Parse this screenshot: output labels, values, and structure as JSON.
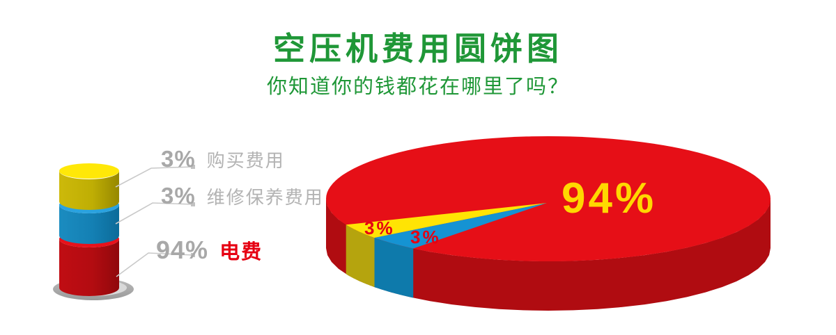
{
  "header": {
    "title": "空压机费用圆饼图",
    "subtitle": "你知道你的钱都花在哪里了吗？",
    "title_color": "#1f9737"
  },
  "legend": {
    "items": [
      {
        "pct": "3%",
        "label": "购买费用",
        "swatch_top": "#ffe808",
        "swatch_body": "#c6b400",
        "text_color": "#b3b3b3"
      },
      {
        "pct": "3%",
        "label": "维修保养费用",
        "swatch_top": "#2aa2df",
        "swatch_body": "#1583b8",
        "text_color": "#b3b3b3"
      },
      {
        "pct": "94%",
        "label": "电费",
        "swatch_top": "#e8111b",
        "swatch_body": "#b50d12",
        "text_color": "#e60012"
      }
    ]
  },
  "chart_data": {
    "type": "pie",
    "style": "3d",
    "title": "空压机费用圆饼图",
    "subtitle": "你知道你的钱都花在哪里了吗？",
    "legend_position": "left",
    "slices": [
      {
        "label": "电费",
        "value": 94,
        "display": "94%",
        "top_color": "#e60f17",
        "side_color": "#b00c11",
        "label_color": "#ffd800"
      },
      {
        "label": "购买费用",
        "value": 3,
        "display": "3%",
        "top_color": "#ffe404",
        "side_color": "#b5a40e",
        "label_color": "#e60012"
      },
      {
        "label": "维修保养费用",
        "value": 3,
        "display": "3%",
        "top_color": "#1593d3",
        "side_color": "#0e7aab",
        "label_color": "#e60012"
      }
    ]
  },
  "colors": {
    "accent_green": "#1f9737",
    "gray_text": "#b3b3b3",
    "leader_line": "#c9c9c9",
    "cylinder_base": "#c4c4c4"
  }
}
